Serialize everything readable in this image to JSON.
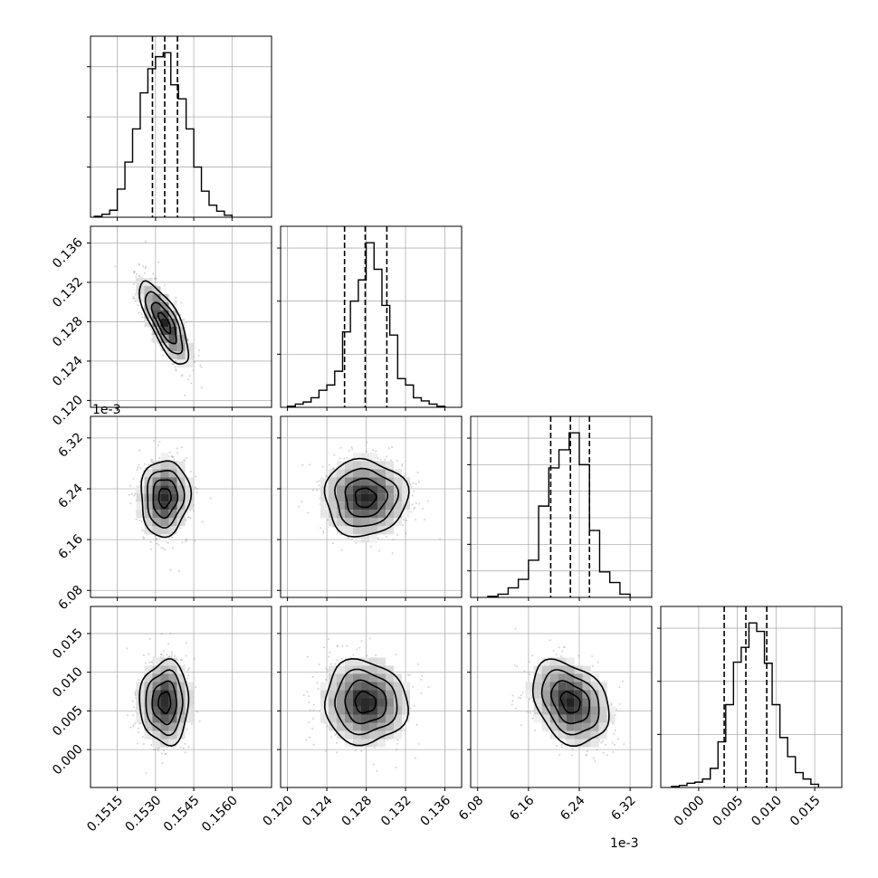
{
  "chart_data": {
    "type": "corner",
    "grid": true,
    "offset_text_params": [
      "",
      "",
      "1e-3",
      ""
    ],
    "axes": [
      {
        "ticks": [
          0.1515,
          0.153,
          0.1545,
          0.156
        ],
        "tick_labels": [
          "0.1515",
          "0.1530",
          "0.1545",
          "0.1560"
        ],
        "range": [
          0.15045,
          0.15755
        ]
      },
      {
        "ticks": [
          0.12,
          0.124,
          0.128,
          0.132,
          0.136
        ],
        "tick_labels": [
          "0.120",
          "0.124",
          "0.128",
          "0.132",
          "0.136"
        ],
        "range": [
          0.1193,
          0.1377
        ]
      },
      {
        "ticks": [
          6.08,
          6.16,
          6.24,
          6.32
        ],
        "tick_labels": [
          "6.08",
          "6.16",
          "6.24",
          "6.32"
        ],
        "range": [
          6.069,
          6.354
        ]
      },
      {
        "ticks": [
          0.0,
          0.005,
          0.01,
          0.015
        ],
        "tick_labels": [
          "0.000",
          "0.005",
          "0.010",
          "0.015"
        ],
        "range": [
          -0.0049,
          0.0185
        ]
      }
    ],
    "histograms": [
      {
        "quantiles": [
          0.15288,
          0.15336,
          0.15386
        ],
        "bins": [
          0.1506,
          0.1509,
          0.1512,
          0.1515,
          0.1518,
          0.1521,
          0.1524,
          0.1527,
          0.153,
          0.1533,
          0.1536,
          0.1539,
          0.1542,
          0.1545,
          0.1548,
          0.1551,
          0.1554,
          0.1557,
          0.156
        ],
        "counts": [
          1,
          3,
          7,
          28,
          55,
          88,
          124,
          148,
          160,
          164,
          132,
          118,
          88,
          50,
          26,
          12,
          6,
          2
        ],
        "ytick_counts": [
          50,
          100,
          150
        ]
      },
      {
        "quantiles": [
          0.1258,
          0.1279,
          0.1301
        ],
        "bins": [
          0.12,
          0.1208,
          0.1216,
          0.1224,
          0.1232,
          0.124,
          0.1248,
          0.1256,
          0.1264,
          0.1272,
          0.128,
          0.1288,
          0.1296,
          0.1304,
          0.1312,
          0.132,
          0.1328,
          0.1336,
          0.1344,
          0.1352,
          0.136
        ],
        "counts": [
          1,
          3,
          5,
          9,
          16,
          21,
          34,
          71,
          100,
          120,
          155,
          130,
          96,
          68,
          27,
          21,
          9,
          6,
          3,
          1
        ],
        "ytick_counts": [
          50,
          100,
          150
        ]
      },
      {
        "quantiles": [
          6.195,
          6.226,
          6.256
        ],
        "bins": [
          6.096,
          6.112,
          6.128,
          6.144,
          6.16,
          6.176,
          6.192,
          6.208,
          6.224,
          6.24,
          6.256,
          6.272,
          6.288,
          6.304,
          6.32
        ],
        "counts": [
          1,
          3,
          9,
          17,
          35,
          86,
          122,
          139,
          155,
          125,
          63,
          24,
          14,
          3
        ],
        "ytick_counts": [
          25,
          50,
          75,
          100,
          125,
          150
        ]
      },
      {
        "quantiles": [
          0.0033,
          0.0061,
          0.0088
        ],
        "bins": [
          -0.0035,
          -0.0025,
          -0.0015,
          -0.0005,
          0.0005,
          0.0015,
          0.0025,
          0.0035,
          0.0045,
          0.0055,
          0.0065,
          0.0075,
          0.0085,
          0.0095,
          0.0105,
          0.0115,
          0.0125,
          0.0135,
          0.0145,
          0.0155
        ],
        "counts": [
          1,
          2,
          4,
          5,
          8,
          18,
          43,
          78,
          118,
          132,
          155,
          147,
          117,
          78,
          47,
          29,
          14,
          8,
          3
        ],
        "ytick_counts": [
          50,
          100,
          150
        ]
      }
    ],
    "pairs": [
      {
        "row": 1,
        "col": 0,
        "mean": [
          0.15336,
          0.1279
        ],
        "sd": [
          0.00048,
          0.0021
        ],
        "rho": -0.75
      },
      {
        "row": 2,
        "col": 0,
        "mean": [
          0.15336,
          6.226
        ],
        "sd": [
          0.00048,
          0.03
        ],
        "rho": 0.05
      },
      {
        "row": 2,
        "col": 1,
        "mean": [
          0.1279,
          6.226
        ],
        "sd": [
          0.0021,
          0.03
        ],
        "rho": 0.0
      },
      {
        "row": 3,
        "col": 0,
        "mean": [
          0.15336,
          0.0061
        ],
        "sd": [
          0.00048,
          0.0027
        ],
        "rho": 0.0
      },
      {
        "row": 3,
        "col": 1,
        "mean": [
          0.1279,
          0.0061
        ],
        "sd": [
          0.0021,
          0.0027
        ],
        "rho": -0.05
      },
      {
        "row": 3,
        "col": 2,
        "mean": [
          6.226,
          0.0061
        ],
        "sd": [
          0.03,
          0.0027
        ],
        "rho": -0.3
      }
    ]
  }
}
